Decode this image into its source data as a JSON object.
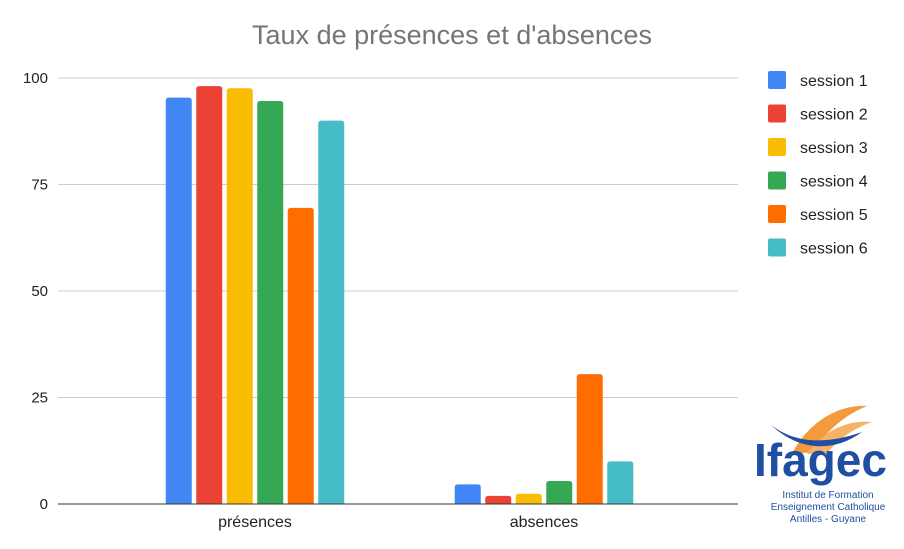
{
  "chart_data": {
    "type": "bar",
    "title": "Taux de présences et d'absences",
    "categories": [
      "présences",
      "absences"
    ],
    "ylim": [
      0,
      100
    ],
    "yticks": [
      0,
      25,
      50,
      75,
      100
    ],
    "grid": true,
    "legend_position": "right",
    "series": [
      {
        "name": "session 1",
        "color": "#4285F4",
        "values": [
          95.4,
          4.6
        ]
      },
      {
        "name": "session 2",
        "color": "#EA4335",
        "values": [
          98.1,
          1.9
        ]
      },
      {
        "name": "session 3",
        "color": "#FBBC04",
        "values": [
          97.6,
          2.4
        ]
      },
      {
        "name": "session 4",
        "color": "#34A853",
        "values": [
          94.6,
          5.4
        ]
      },
      {
        "name": "session 5",
        "color": "#FF6D01",
        "values": [
          69.5,
          30.5
        ]
      },
      {
        "name": "session 6",
        "color": "#46BDC6",
        "values": [
          90.0,
          10.0
        ]
      }
    ]
  },
  "logo": {
    "word": "Ifagec",
    "line1": "Institut de Formation",
    "line2": "Enseignement Catholique",
    "line3": "Antilles - Guyane"
  }
}
